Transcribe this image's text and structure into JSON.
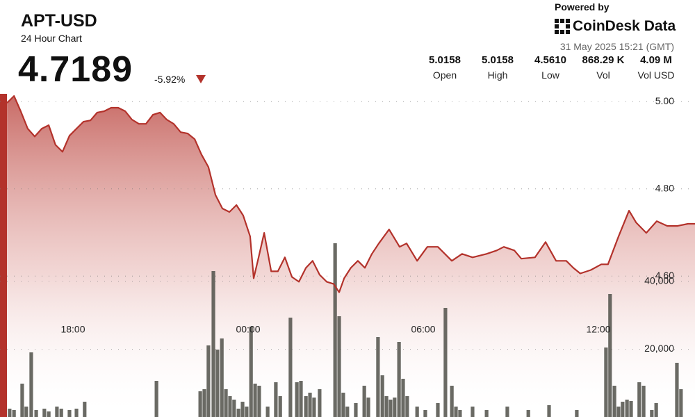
{
  "header": {
    "title": "APT-USD",
    "subtitle": "24 Hour Chart",
    "price": "4.7189",
    "change": "-5.92%",
    "powered_by": "Powered by",
    "brand": "CoinDesk Data",
    "timestamp": "31 May 2025 15:21 (GMT)",
    "stats": [
      {
        "value": "5.0158",
        "label": "Open"
      },
      {
        "value": "5.0158",
        "label": "High"
      },
      {
        "value": "4.5610",
        "label": "Low"
      },
      {
        "value": "868.29 K",
        "label": "Vol"
      },
      {
        "value": "4.09 M",
        "label": "Vol USD"
      }
    ]
  },
  "chart_data": {
    "type": "line",
    "xlim": [
      15.5,
      39.31
    ],
    "xticks": [
      {
        "value": 18,
        "label": "18:00"
      },
      {
        "value": 24,
        "label": "00:00"
      },
      {
        "value": 30,
        "label": "06:00"
      },
      {
        "value": 36,
        "label": "12:00"
      }
    ],
    "ylim": [
      4.277,
      5.233
    ],
    "yticks": [
      {
        "value": 4.6,
        "label": "4.60"
      },
      {
        "value": 4.8,
        "label": "4.80"
      },
      {
        "value": 5,
        "label": "5.00"
      }
    ],
    "y2lim": [
      0,
      123000
    ],
    "y2ticks": [
      {
        "value": 20000,
        "label": "20,000"
      },
      {
        "value": 40000,
        "label": "40,000"
      }
    ],
    "grid": true,
    "series": [
      {
        "type": "line",
        "color": "#b3322b",
        "x": [
          15.74,
          15.98,
          16.21,
          16.45,
          16.69,
          16.93,
          17.17,
          17.4,
          17.64,
          17.88,
          18.12,
          18.36,
          18.6,
          18.83,
          19.07,
          19.31,
          19.55,
          19.79,
          20.02,
          20.26,
          20.5,
          20.74,
          20.98,
          21.21,
          21.45,
          21.69,
          21.93,
          22.17,
          22.4,
          22.64,
          22.88,
          23.12,
          23.36,
          23.6,
          23.83,
          24.07,
          24.19,
          24.36,
          24.55,
          24.79,
          25.02,
          25.26,
          25.5,
          25.74,
          25.98,
          26.21,
          26.45,
          26.69,
          26.93,
          27.12,
          27.29,
          27.52,
          27.76,
          28.0,
          28.24,
          28.48,
          28.83,
          29.19,
          29.43,
          29.79,
          30.14,
          30.5,
          30.98,
          31.33,
          31.69,
          32.17,
          32.52,
          32.76,
          33.12,
          33.36,
          33.83,
          34.19,
          34.55,
          34.9,
          35.14,
          35.38,
          35.74,
          36.1,
          36.33,
          36.69,
          37.05,
          37.29,
          37.64,
          38.0,
          38.36,
          38.71,
          39.07,
          39.31
        ],
        "values": [
          4.997,
          5.013,
          4.978,
          4.938,
          4.92,
          4.938,
          4.946,
          4.901,
          4.885,
          4.922,
          4.938,
          4.954,
          4.957,
          4.975,
          4.978,
          4.986,
          4.986,
          4.978,
          4.959,
          4.949,
          4.949,
          4.97,
          4.975,
          4.959,
          4.949,
          4.93,
          4.927,
          4.914,
          4.879,
          4.85,
          4.786,
          4.755,
          4.747,
          4.763,
          4.739,
          4.691,
          4.595,
          4.643,
          4.699,
          4.611,
          4.611,
          4.643,
          4.598,
          4.587,
          4.619,
          4.635,
          4.603,
          4.587,
          4.582,
          4.563,
          4.595,
          4.619,
          4.635,
          4.619,
          4.651,
          4.675,
          4.707,
          4.667,
          4.675,
          4.635,
          4.667,
          4.667,
          4.635,
          4.651,
          4.643,
          4.651,
          4.659,
          4.667,
          4.659,
          4.64,
          4.643,
          4.678,
          4.635,
          4.635,
          4.619,
          4.606,
          4.614,
          4.627,
          4.627,
          4.691,
          4.75,
          4.723,
          4.699,
          4.726,
          4.715,
          4.715,
          4.72,
          4.72
        ]
      },
      {
        "type": "bar",
        "axis": "y2",
        "color": "#55554f",
        "x": [
          15.83,
          15.98,
          16.26,
          16.4,
          16.57,
          16.74,
          17.02,
          17.17,
          17.45,
          17.6,
          17.88,
          18.12,
          18.4,
          20.86,
          22.36,
          22.5,
          22.64,
          22.81,
          22.95,
          23.1,
          23.24,
          23.38,
          23.52,
          23.67,
          23.81,
          23.95,
          24.1,
          24.24,
          24.38,
          24.67,
          24.95,
          25.1,
          25.45,
          25.67,
          25.81,
          25.98,
          26.12,
          26.26,
          26.45,
          26.98,
          27.12,
          27.26,
          27.4,
          27.69,
          27.98,
          28.12,
          28.45,
          28.6,
          28.74,
          28.88,
          29.02,
          29.17,
          29.31,
          29.45,
          29.79,
          30.07,
          30.5,
          30.76,
          30.98,
          31.12,
          31.26,
          31.69,
          32.17,
          32.88,
          33.6,
          34.31,
          35.26,
          36.26,
          36.4,
          36.55,
          36.69,
          36.83,
          36.98,
          37.12,
          37.4,
          37.55,
          37.83,
          37.98,
          38.69,
          38.83
        ],
        "values": [
          2460,
          2050,
          9840,
          3075,
          19065,
          2050,
          2460,
          1640,
          3075,
          2460,
          2050,
          2460,
          4510,
          10660,
          7585,
          8200,
          21115,
          43050,
          19885,
          23165,
          8200,
          6150,
          5125,
          2460,
          4510,
          3075,
          26650,
          9840,
          9225,
          3075,
          10250,
          6150,
          29315,
          10250,
          10660,
          6150,
          7175,
          5740,
          8200,
          51250,
          29725,
          7175,
          3075,
          4100,
          9225,
          5740,
          23575,
          12300,
          6150,
          5125,
          5740,
          22140,
          11275,
          6150,
          3075,
          2050,
          4100,
          32185,
          9225,
          3075,
          2050,
          3075,
          2050,
          3075,
          2050,
          3485,
          2050,
          20500,
          36285,
          9225,
          3075,
          4510,
          5125,
          4715,
          10250,
          9225,
          2050,
          4100,
          15990,
          8200
        ]
      }
    ]
  }
}
